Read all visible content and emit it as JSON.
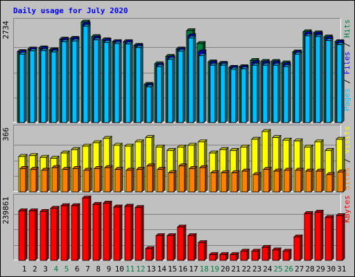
{
  "chart_data": {
    "type": "bar",
    "title": "Daily usage for July 2020",
    "categories": [
      "1",
      "2",
      "3",
      "4",
      "5",
      "6",
      "7",
      "8",
      "9",
      "10",
      "11",
      "12",
      "13",
      "14",
      "15",
      "16",
      "17",
      "18",
      "19",
      "20",
      "21",
      "22",
      "23",
      "24",
      "25",
      "26",
      "27",
      "28",
      "29",
      "30",
      "31"
    ],
    "weekend_days": [
      "4",
      "5",
      "11",
      "12",
      "18",
      "19",
      "25",
      "26"
    ],
    "colors": {
      "hits": "#008040",
      "files": "#0000ff",
      "pages": "#00c0ff",
      "visits": "#ffff00",
      "sites": "#ff8000",
      "kbytes": "#ff0000",
      "title": "#0000ff",
      "weekday_label": "#000000",
      "weekend_label": "#008040",
      "panel_bg": "#c0c0c0"
    },
    "panels": [
      {
        "id": "hits-files-pages",
        "ymax_label": "2734",
        "ylim": [
          0,
          2734
        ],
        "side_labels": [
          {
            "key": "pages",
            "text": "Pages",
            "color": "#00c0ff"
          },
          {
            "key": "sep1",
            "text": " / ",
            "color": "#000000"
          },
          {
            "key": "files",
            "text": "Files",
            "color": "#0000ff"
          },
          {
            "key": "sep2",
            "text": " / ",
            "color": "#000000"
          },
          {
            "key": "hits",
            "text": "Hits",
            "color": "#008040"
          }
        ],
        "series": [
          {
            "name": "Hits",
            "key": "hits",
            "values": [
              1930,
              2000,
              2030,
              1980,
              2270,
              2290,
              2734,
              2340,
              2250,
              2200,
              2200,
              2100,
              1040,
              1600,
              1800,
              2000,
              2500,
              2150,
              1650,
              1610,
              1500,
              1520,
              1690,
              1660,
              1660,
              1620,
              1920,
              2470,
              2440,
              2330,
              2200
            ]
          },
          {
            "name": "Files",
            "key": "files",
            "values": [
              1910,
              1990,
              2010,
              1960,
              2250,
              2270,
              2680,
              2300,
              2230,
              2190,
              2190,
              2080,
              1010,
              1560,
              1760,
              1980,
              2360,
              1920,
              1620,
              1590,
              1490,
              1500,
              1630,
              1620,
              1620,
              1580,
              1900,
              2420,
              2410,
              2290,
              2180
            ]
          },
          {
            "name": "Pages",
            "key": "pages",
            "values": [
              1860,
              1950,
              1960,
              1920,
              2200,
              2220,
              2620,
              2250,
              2180,
              2150,
              2140,
              2040,
              970,
              1520,
              1720,
              1940,
              2300,
              1820,
              1560,
              1560,
              1450,
              1460,
              1560,
              1560,
              1560,
              1520,
              1860,
              2360,
              2340,
              2230,
              2120
            ]
          }
        ]
      },
      {
        "id": "visits-sites",
        "ymax_label": "366",
        "ylim": [
          0,
          366
        ],
        "side_labels": [
          {
            "key": "sites",
            "text": "Sites",
            "color": "#ff8000"
          },
          {
            "key": "sep1",
            "text": " / ",
            "color": "#000000"
          },
          {
            "key": "visits",
            "text": "Visits",
            "color": "#ffff00"
          }
        ],
        "series": [
          {
            "name": "Visits",
            "key": "visits",
            "values": [
              205,
              210,
              200,
              195,
              225,
              245,
              265,
              285,
              310,
              270,
              265,
              290,
              315,
              260,
              240,
              260,
              270,
              290,
              225,
              245,
              240,
              260,
              305,
              350,
              315,
              300,
              295,
              260,
              290,
              240,
              305
            ]
          },
          {
            "name": "Sites",
            "key": "sites",
            "values": [
              135,
              130,
              125,
              140,
              130,
              135,
              125,
              135,
              140,
              130,
              125,
              130,
              150,
              130,
              110,
              150,
              135,
              140,
              110,
              110,
              110,
              120,
              100,
              130,
              120,
              125,
              125,
              120,
              120,
              100,
              115
            ]
          }
        ]
      },
      {
        "id": "kbytes",
        "ymax_label": "239861",
        "ylim": [
          0,
          239861
        ],
        "side_labels": [
          {
            "key": "kbytes",
            "text": "KBytes",
            "color": "#ff0000"
          }
        ],
        "series": [
          {
            "name": "KBytes",
            "key": "kbytes",
            "values": [
              190000,
              190000,
              188000,
              200000,
              210000,
              210000,
              239861,
              215000,
              220000,
              205000,
              208000,
              203000,
              45000,
              95000,
              95000,
              128000,
              95000,
              68000,
              22000,
              22000,
              22000,
              35000,
              35000,
              50000,
              40000,
              35000,
              90000,
              180000,
              185000,
              165000,
              172000
            ]
          }
        ]
      }
    ]
  }
}
